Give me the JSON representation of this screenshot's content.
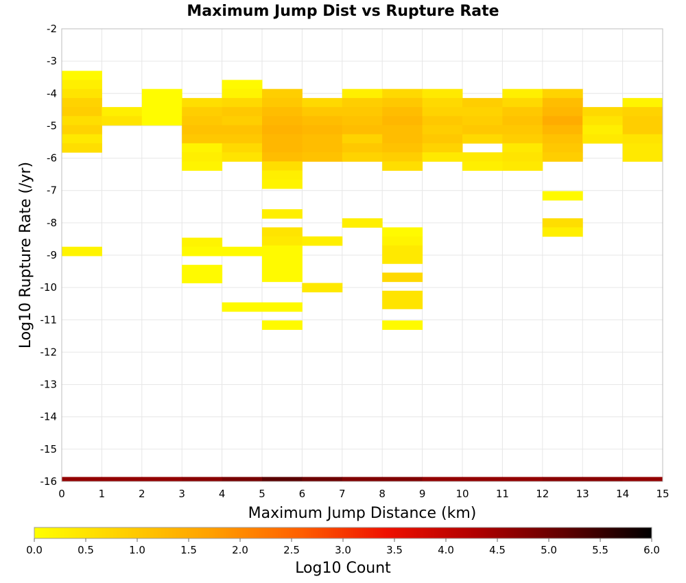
{
  "chart_data": {
    "type": "heatmap",
    "title": "Maximum Jump Dist vs Rupture Rate",
    "xlabel": "Maximum Jump Distance (km)",
    "ylabel": "Log10 Rupture Rate (/yr)",
    "xlim": [
      0,
      15
    ],
    "ylim": [
      -16,
      -2
    ],
    "x_ticks": [
      "0",
      "1",
      "2",
      "3",
      "4",
      "5",
      "6",
      "7",
      "8",
      "9",
      "10",
      "11",
      "12",
      "13",
      "14",
      "15"
    ],
    "y_ticks": [
      "-2",
      "-3",
      "-4",
      "-5",
      "-6",
      "-7",
      "-8",
      "-9",
      "-10",
      "-11",
      "-12",
      "-13",
      "-14",
      "-15",
      "-16"
    ],
    "x_bin_width": 1,
    "y_bin_height": 0.28,
    "grid": true,
    "colorbar": {
      "label": "Log10 Count",
      "min": 0,
      "max": 6,
      "ticks": [
        "0.0",
        "0.5",
        "1.0",
        "1.5",
        "2.0",
        "2.5",
        "3.0",
        "3.5",
        "4.0",
        "4.5",
        "5.0",
        "5.5",
        "6.0"
      ],
      "colors": [
        "#ffff00",
        "#ffd000",
        "#ffa000",
        "#ff6000",
        "#ee1000",
        "#b00000",
        "#600000",
        "#000000"
      ]
    },
    "cells": [
      [
        0,
        -3.44,
        0.1
      ],
      [
        0,
        -3.72,
        0.3
      ],
      [
        0,
        -4.0,
        0.5
      ],
      [
        0,
        -4.28,
        0.8
      ],
      [
        0,
        -4.56,
        0.9
      ],
      [
        0,
        -4.84,
        0.6
      ],
      [
        0,
        -5.12,
        0.8
      ],
      [
        0,
        -5.4,
        0.4
      ],
      [
        0,
        -5.68,
        0.6
      ],
      [
        0,
        -8.88,
        0.2
      ],
      [
        1,
        -4.56,
        0.3
      ],
      [
        1,
        -4.84,
        0.5
      ],
      [
        2,
        -4.0,
        0.05
      ],
      [
        2,
        -4.28,
        0.05
      ],
      [
        2,
        -4.56,
        0.05
      ],
      [
        2,
        -4.84,
        0.05
      ],
      [
        3,
        -4.28,
        0.6
      ],
      [
        3,
        -4.56,
        0.9
      ],
      [
        3,
        -4.84,
        1.0
      ],
      [
        3,
        -5.12,
        1.1
      ],
      [
        3,
        -5.4,
        1.0
      ],
      [
        3,
        -5.68,
        0.2
      ],
      [
        3,
        -5.96,
        0.3
      ],
      [
        3,
        -6.24,
        0.2
      ],
      [
        3,
        -8.6,
        0.2
      ],
      [
        3,
        -8.88,
        0.1
      ],
      [
        3,
        -9.44,
        0.1
      ],
      [
        3,
        -9.72,
        0.1
      ],
      [
        4,
        -3.72,
        0.1
      ],
      [
        4,
        -4.0,
        0.2
      ],
      [
        4,
        -4.28,
        0.7
      ],
      [
        4,
        -4.56,
        1.0
      ],
      [
        4,
        -4.84,
        0.9
      ],
      [
        4,
        -5.12,
        1.1
      ],
      [
        4,
        -5.4,
        1.0
      ],
      [
        4,
        -5.68,
        0.7
      ],
      [
        4,
        -5.96,
        0.5
      ],
      [
        4,
        -8.88,
        0.1
      ],
      [
        4,
        -10.6,
        0.1
      ],
      [
        5,
        -4.0,
        0.9
      ],
      [
        5,
        -4.28,
        1.0
      ],
      [
        5,
        -4.56,
        1.2
      ],
      [
        5,
        -4.84,
        1.3
      ],
      [
        5,
        -5.12,
        1.4
      ],
      [
        5,
        -5.4,
        1.3
      ],
      [
        5,
        -5.68,
        1.3
      ],
      [
        5,
        -5.96,
        1.2
      ],
      [
        5,
        -6.24,
        0.6
      ],
      [
        5,
        -6.52,
        0.3
      ],
      [
        5,
        -6.8,
        0.2
      ],
      [
        5,
        -7.72,
        0.3
      ],
      [
        5,
        -8.28,
        0.5
      ],
      [
        5,
        -8.56,
        0.4
      ],
      [
        5,
        -8.84,
        0.1
      ],
      [
        5,
        -9.12,
        0.1
      ],
      [
        5,
        -9.4,
        0.1
      ],
      [
        5,
        -9.68,
        0.1
      ],
      [
        5,
        -10.6,
        0.1
      ],
      [
        5,
        -11.16,
        0.1
      ],
      [
        6,
        -4.28,
        0.7
      ],
      [
        6,
        -4.56,
        1.0
      ],
      [
        6,
        -4.84,
        1.2
      ],
      [
        6,
        -5.12,
        1.3
      ],
      [
        6,
        -5.4,
        1.2
      ],
      [
        6,
        -5.68,
        1.2
      ],
      [
        6,
        -5.96,
        1.1
      ],
      [
        6,
        -8.56,
        0.3
      ],
      [
        6,
        -10.0,
        0.4
      ],
      [
        7,
        -4.0,
        0.3
      ],
      [
        7,
        -4.28,
        0.9
      ],
      [
        7,
        -4.56,
        1.0
      ],
      [
        7,
        -4.84,
        1.1
      ],
      [
        7,
        -5.12,
        1.2
      ],
      [
        7,
        -5.4,
        0.8
      ],
      [
        7,
        -5.68,
        1.0
      ],
      [
        7,
        -5.96,
        0.8
      ],
      [
        7,
        -8.0,
        0.3
      ],
      [
        8,
        -4.0,
        0.7
      ],
      [
        8,
        -4.28,
        1.0
      ],
      [
        8,
        -4.56,
        1.2
      ],
      [
        8,
        -4.84,
        1.3
      ],
      [
        8,
        -5.12,
        1.2
      ],
      [
        8,
        -5.4,
        1.2
      ],
      [
        8,
        -5.68,
        1.1
      ],
      [
        8,
        -5.96,
        0.9
      ],
      [
        8,
        -6.24,
        0.6
      ],
      [
        8,
        -8.28,
        0.1
      ],
      [
        8,
        -8.56,
        0.2
      ],
      [
        8,
        -8.84,
        0.4
      ],
      [
        8,
        -9.12,
        0.4
      ],
      [
        8,
        -9.68,
        0.7
      ],
      [
        8,
        -10.24,
        0.5
      ],
      [
        8,
        -10.52,
        0.5
      ],
      [
        8,
        -11.16,
        0.1
      ],
      [
        9,
        -4.0,
        0.4
      ],
      [
        9,
        -4.28,
        0.7
      ],
      [
        9,
        -4.56,
        0.8
      ],
      [
        9,
        -4.84,
        1.0
      ],
      [
        9,
        -5.12,
        0.9
      ],
      [
        9,
        -5.4,
        1.0
      ],
      [
        9,
        -5.68,
        0.8
      ],
      [
        9,
        -5.96,
        0.4
      ],
      [
        10,
        -4.28,
        0.9
      ],
      [
        10,
        -4.56,
        0.8
      ],
      [
        10,
        -4.84,
        0.9
      ],
      [
        10,
        -5.12,
        1.0
      ],
      [
        10,
        -5.4,
        0.7
      ],
      [
        10,
        -5.96,
        0.4
      ],
      [
        10,
        -6.24,
        0.3
      ],
      [
        11,
        -4.0,
        0.3
      ],
      [
        11,
        -4.28,
        0.7
      ],
      [
        11,
        -4.56,
        1.0
      ],
      [
        11,
        -4.84,
        1.1
      ],
      [
        11,
        -5.12,
        1.0
      ],
      [
        11,
        -5.4,
        0.9
      ],
      [
        11,
        -5.68,
        0.4
      ],
      [
        11,
        -5.96,
        0.5
      ],
      [
        11,
        -6.24,
        0.4
      ],
      [
        12,
        -4.0,
        0.8
      ],
      [
        12,
        -4.28,
        1.2
      ],
      [
        12,
        -4.56,
        1.3
      ],
      [
        12,
        -4.84,
        1.5
      ],
      [
        12,
        -5.12,
        1.3
      ],
      [
        12,
        -5.4,
        1.1
      ],
      [
        12,
        -5.68,
        1.0
      ],
      [
        12,
        -5.96,
        0.9
      ],
      [
        12,
        -7.16,
        0.1
      ],
      [
        12,
        -8.0,
        0.6
      ],
      [
        12,
        -8.28,
        0.3
      ],
      [
        13,
        -4.56,
        0.7
      ],
      [
        13,
        -4.84,
        0.5
      ],
      [
        13,
        -5.12,
        0.3
      ],
      [
        13,
        -5.4,
        0.4
      ],
      [
        14,
        -4.28,
        0.2
      ],
      [
        14,
        -4.56,
        0.8
      ],
      [
        14,
        -4.84,
        0.9
      ],
      [
        14,
        -5.12,
        0.9
      ],
      [
        14,
        -5.4,
        0.5
      ],
      [
        14,
        -5.68,
        0.4
      ],
      [
        14,
        -5.96,
        0.4
      ]
    ],
    "baseline_row": {
      "y": -16,
      "values": [
        4.6,
        4.6,
        4.6,
        4.7,
        4.9,
        5.2,
        5.0,
        4.8,
        4.8,
        4.6,
        4.6,
        4.6,
        4.7,
        4.7,
        4.6
      ]
    }
  }
}
